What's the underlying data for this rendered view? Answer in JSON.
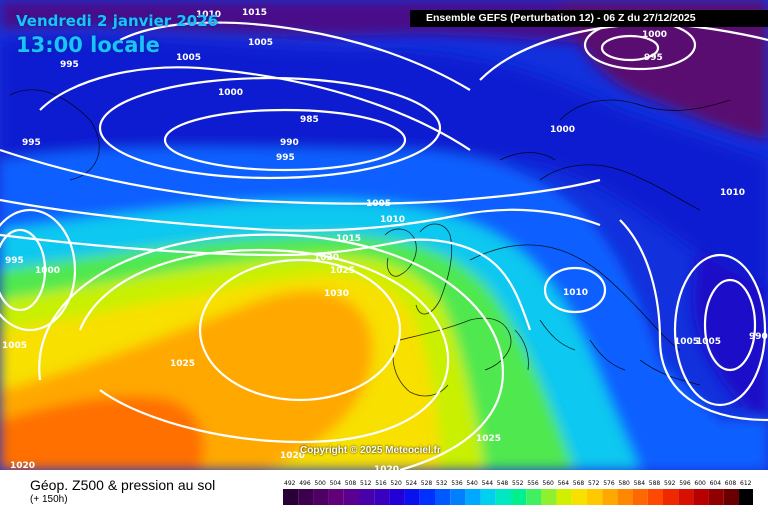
{
  "header": {
    "date": "Vendredi 2 janvier 2026",
    "time": "13:00 locale",
    "model_run": "Ensemble GEFS  (Perturbation 12)  -  06 Z du 27/12/2025"
  },
  "map": {
    "copyright": "Copyright © 2025 Meteociel.fr",
    "pressure_labels": [
      {
        "value": "1010",
        "lon_lat": "n-atl-top"
      },
      {
        "value": "1015"
      },
      {
        "value": "1005"
      },
      {
        "value": "995"
      },
      {
        "value": "1005"
      },
      {
        "value": "1000"
      },
      {
        "value": "1000"
      },
      {
        "value": "995"
      },
      {
        "value": "1000"
      },
      {
        "value": "985"
      },
      {
        "value": "990"
      },
      {
        "value": "995"
      },
      {
        "value": "995"
      },
      {
        "value": "1005"
      },
      {
        "value": "1010"
      },
      {
        "value": "1010"
      },
      {
        "value": "1015"
      },
      {
        "value": "1020"
      },
      {
        "value": "1025"
      },
      {
        "value": "995"
      },
      {
        "value": "1000"
      },
      {
        "value": "1030"
      },
      {
        "value": "1010"
      },
      {
        "value": "1005"
      },
      {
        "value": "1025"
      },
      {
        "value": "1005"
      },
      {
        "value": "1005"
      },
      {
        "value": "990"
      },
      {
        "value": "1025"
      },
      {
        "value": "1020"
      },
      {
        "value": "1020"
      },
      {
        "value": "1020"
      }
    ]
  },
  "legend": {
    "title": "Géop. Z500 & pression au sol",
    "subtitle": "(+ 150h)",
    "scale_values": [
      "492",
      "496",
      "500",
      "504",
      "508",
      "512",
      "516",
      "520",
      "524",
      "528",
      "532",
      "536",
      "540",
      "544",
      "548",
      "552",
      "556",
      "560",
      "564",
      "568",
      "572",
      "576",
      "580",
      "584",
      "588",
      "592",
      "596",
      "600",
      "604",
      "608",
      "612"
    ],
    "scale_colors": [
      "#2a0038",
      "#3c004e",
      "#4f0064",
      "#62007a",
      "#5a0090",
      "#4a00a8",
      "#3a00c0",
      "#2400d8",
      "#0a10ee",
      "#0030ff",
      "#0058ff",
      "#0080ff",
      "#00a8ff",
      "#00d0f0",
      "#00e8c0",
      "#00f090",
      "#40f060",
      "#90f030",
      "#d0f000",
      "#f8e000",
      "#ffc800",
      "#ffa800",
      "#ff8800",
      "#ff6800",
      "#ff4800",
      "#f02800",
      "#d81000",
      "#b80000",
      "#900000",
      "#680000",
      "#000000"
    ]
  }
}
